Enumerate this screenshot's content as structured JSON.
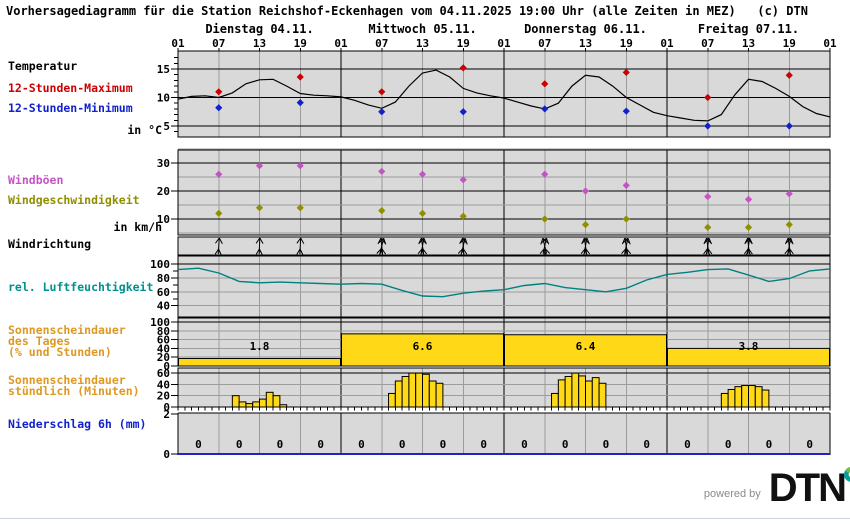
{
  "title": "Vorhersagediagramm für die Station Reichshof-Eckenhagen vom 04.11.2025 19:00 Uhr (alle Zeiten in MEZ)   (c) DTN",
  "legend": {
    "temperature": "Temperatur",
    "max12": "12-Stunden-Maximum",
    "min12": "12-Stunden-Minimum",
    "temp_unit": "in °C",
    "gusts": "Windböen",
    "wind_speed": "Windgeschwindigkeit",
    "wind_unit": "in km/h",
    "wind_dir": "Windrichtung",
    "humidity": "rel. Luftfeuchtigkeit",
    "sun_day_line1": "Sonnenscheindauer",
    "sun_day_line2": "des Tages",
    "sun_day_line3": "(% und Stunden)",
    "sun_hour_line1": "Sonnenscheindauer",
    "sun_hour_line2": "stündlich (Minuten)",
    "precip": "Niederschlag 6h (mm)"
  },
  "footer": {
    "powered_by": "powered by",
    "logo_text": "DTN"
  },
  "colors": {
    "max": "#cc0000",
    "min": "#1122cc",
    "gusts": "#c653c6",
    "wind_speed": "#8f8f00",
    "humidity": "#008080",
    "sunshine_fill": "#ffd918",
    "precip_line": "#2222cc",
    "plot_bg": "#d9d9d9",
    "grid_minor": "#9c9c9c",
    "grid_major": "#000000",
    "logo_teal": "#00a09b",
    "logo_green": "#72bf44"
  },
  "chart_data": {
    "type": "meteogram",
    "x_axis": {
      "total_hours": 96,
      "hour_tick_labels": [
        "01",
        "07",
        "13",
        "19"
      ],
      "day_labels": [
        "Dienstag 04.11.",
        "Mittwoch 05.11.",
        "Donnerstag 06.11.",
        "Freitag 07.11."
      ]
    },
    "temperature": {
      "unit": "°C",
      "yticks": [
        5,
        10,
        15
      ],
      "curve_step_h": 2,
      "curve": [
        9.7,
        10.2,
        10.3,
        10.0,
        10.8,
        12.4,
        13.1,
        13.2,
        12.0,
        10.7,
        10.4,
        10.3,
        10.1,
        9.5,
        8.7,
        8.1,
        9.2,
        12.0,
        14.3,
        14.8,
        13.6,
        11.6,
        10.8,
        10.3,
        9.9,
        9.2,
        8.5,
        8.0,
        9.0,
        12.0,
        13.9,
        13.6,
        12.0,
        10.0,
        8.7,
        7.4,
        6.8,
        6.4,
        6.0,
        5.9,
        7.0,
        10.5,
        13.2,
        12.8,
        11.6,
        10.2,
        8.4,
        7.2,
        6.6
      ],
      "max_12h": {
        "hours": [
          6,
          18,
          30,
          42,
          54,
          66,
          78,
          90
        ],
        "values": [
          11.0,
          13.6,
          11.0,
          15.2,
          12.4,
          14.4,
          10.0,
          13.9
        ]
      },
      "min_12h": {
        "hours": [
          6,
          18,
          30,
          42,
          54,
          66,
          78,
          90
        ],
        "values": [
          8.2,
          9.1,
          7.5,
          7.5,
          8.0,
          7.6,
          5.0,
          5.0
        ]
      }
    },
    "wind": {
      "unit": "km/h",
      "yticks": [
        10,
        20,
        30
      ],
      "hours": [
        6,
        12,
        18,
        30,
        36,
        42,
        54,
        60,
        66,
        78,
        84,
        90
      ],
      "gusts": [
        26,
        29,
        29,
        27,
        26,
        24,
        26,
        20,
        22,
        18,
        17,
        19
      ],
      "speed": [
        12,
        14,
        14,
        13,
        12,
        11,
        10,
        8,
        10,
        7,
        7,
        8
      ]
    },
    "wind_direction": {
      "hours": [
        6,
        12,
        18,
        30,
        36,
        42,
        54,
        60,
        66,
        78,
        84,
        90
      ],
      "rotations": [
        [
          4
        ],
        [
          2
        ],
        [
          3
        ],
        [
          14,
          -6
        ],
        [
          10,
          -8
        ],
        [
          14,
          -4
        ],
        [
          12,
          -14
        ],
        [
          10,
          -8
        ],
        [
          12,
          -10
        ],
        [
          8,
          -8
        ],
        [
          8,
          -6
        ],
        [
          10,
          -8
        ]
      ]
    },
    "humidity": {
      "unit": "%",
      "yticks": [
        40,
        60,
        80,
        100
      ],
      "curve_step_h": 3,
      "curve": [
        92,
        94,
        87,
        75,
        73,
        74,
        73,
        72,
        71,
        72,
        71,
        62,
        54,
        53,
        58,
        61,
        63,
        69,
        72,
        66,
        63,
        60,
        65,
        77,
        85,
        88,
        92,
        93,
        84,
        75,
        79,
        90,
        93
      ]
    },
    "sunshine_day": {
      "yticks": [
        0,
        20,
        40,
        60,
        80,
        100
      ],
      "hours_values": [
        "1.8",
        "6.6",
        "6.4",
        "3.8"
      ],
      "percent": [
        17,
        73,
        71,
        40
      ]
    },
    "sunshine_hourly": {
      "yticks": [
        0,
        20,
        40,
        60
      ],
      "groups": [
        {
          "start_hour": 8,
          "minutes": [
            20,
            9,
            6,
            9,
            14,
            26,
            20,
            4
          ]
        },
        {
          "start_hour": 31,
          "minutes": [
            24,
            46,
            54,
            60,
            60,
            58,
            46,
            42
          ]
        },
        {
          "start_hour": 55,
          "minutes": [
            24,
            48,
            54,
            60,
            55,
            46,
            52,
            42
          ]
        },
        {
          "start_hour": 80,
          "minutes": [
            24,
            31,
            36,
            38,
            38,
            36,
            30
          ]
        }
      ]
    },
    "precipitation_6h": {
      "yticks": [
        0,
        2
      ],
      "slot_center_hours": [
        3,
        9,
        15,
        21,
        27,
        33,
        39,
        45,
        51,
        57,
        63,
        69,
        75,
        81,
        87,
        93
      ],
      "values": [
        "0",
        "0",
        "0",
        "0",
        "0",
        "0",
        "0",
        "0",
        "0",
        "0",
        "0",
        "0",
        "0",
        "0",
        "0",
        "0"
      ]
    }
  }
}
